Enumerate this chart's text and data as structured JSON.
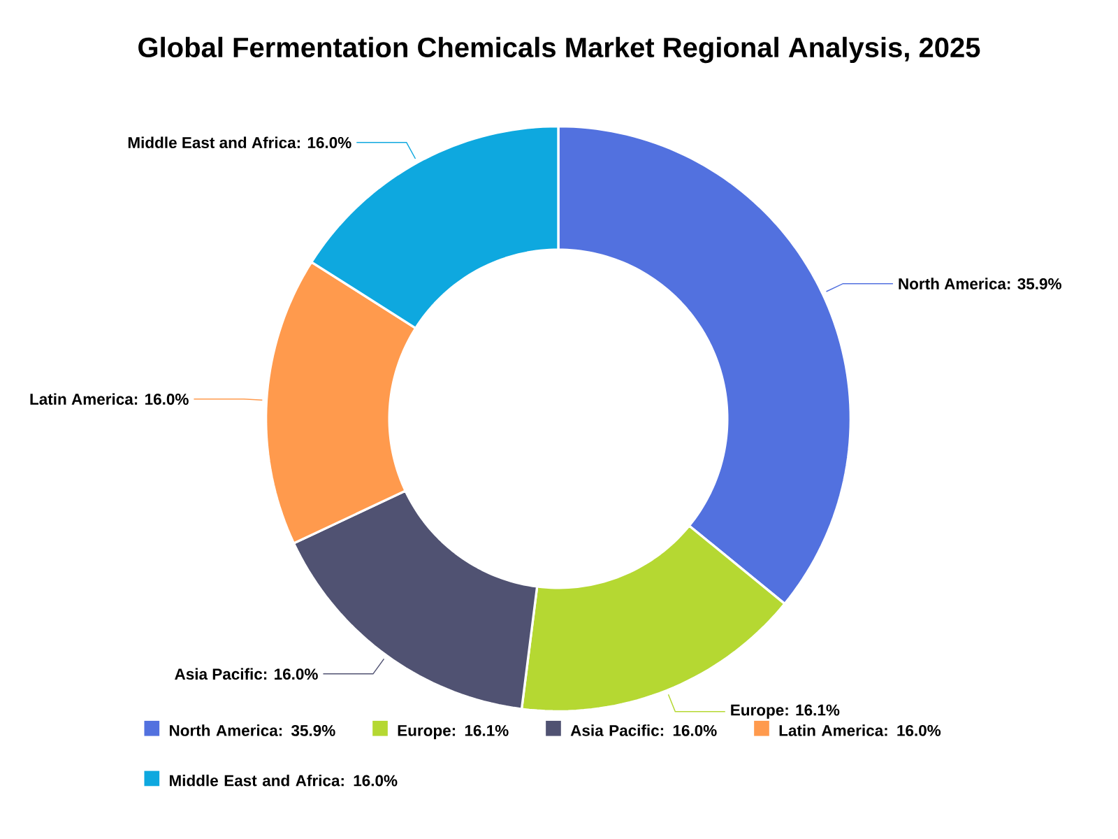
{
  "chart_data": {
    "type": "donut",
    "title": "Global Fermentation Chemicals Market Regional Analysis, 2025",
    "categories": [
      "North America: 35.9%",
      "Europe: 16.1%",
      "Asia Pacific: 16.0%",
      "Latin America: 16.0%",
      "Middle East and Africa: 16.0%"
    ],
    "values": [
      35.9,
      16.1,
      16.0,
      16.0,
      16.0
    ],
    "colors": [
      "#5271df",
      "#b5d832",
      "#505272",
      "#ff9a4d",
      "#0ea8df"
    ],
    "legend": "bottom"
  }
}
